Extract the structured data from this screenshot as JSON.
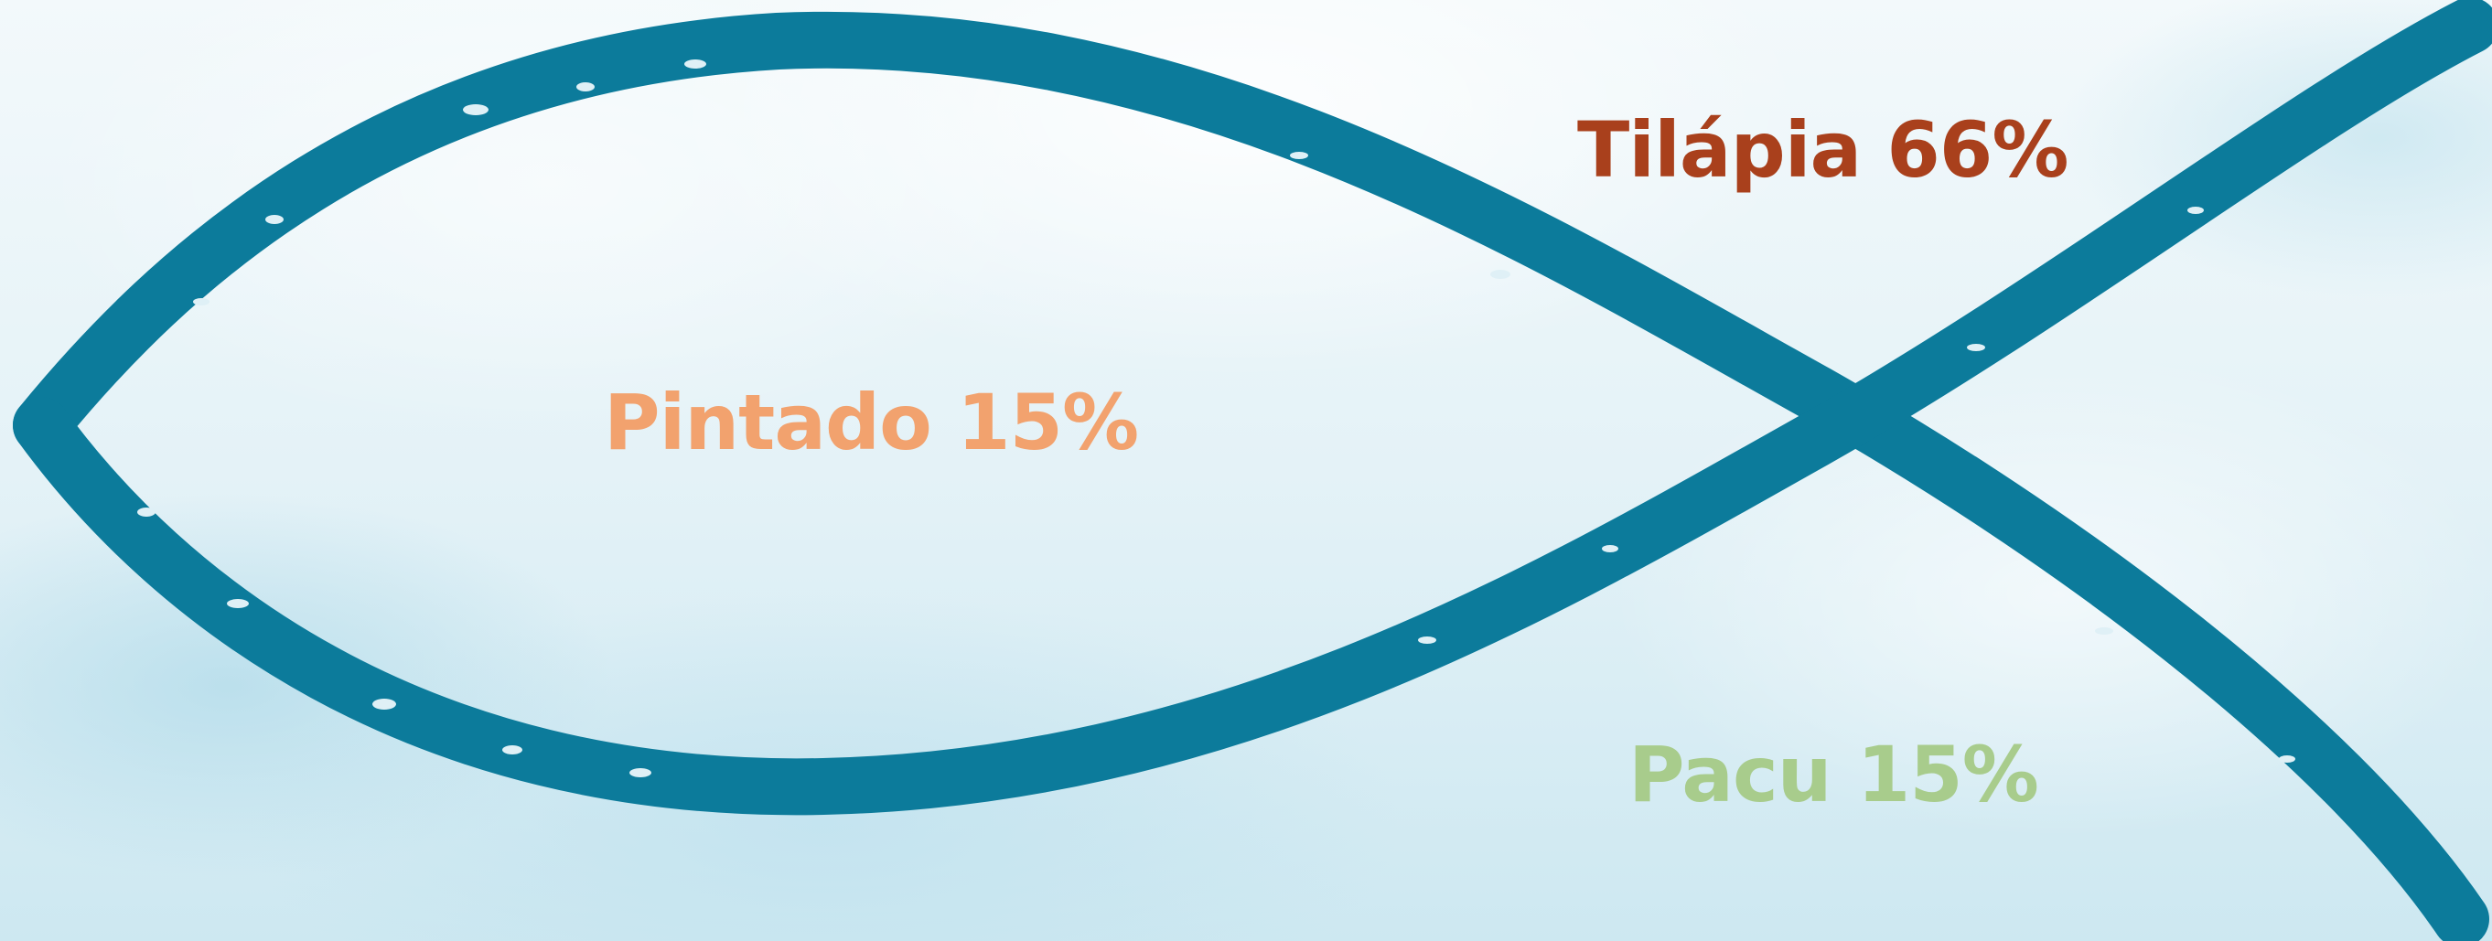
{
  "labels": {
    "tilapia": "Tilápia 66%",
    "pintado": "Pintado 15%",
    "pacu": "Pacu 15%"
  },
  "species_share": [
    {
      "name": "Tilápia",
      "percent": 66
    },
    {
      "name": "Pintado",
      "percent": 15
    },
    {
      "name": "Pacu",
      "percent": 15
    }
  ],
  "colors": {
    "fish_outline": "#0c7b9b",
    "tilapia": "#a9401c",
    "pintado": "#f2a26e",
    "pacu": "#a8cc8c"
  },
  "icons": {
    "fish": "ichthys-fish-outline-icon"
  }
}
